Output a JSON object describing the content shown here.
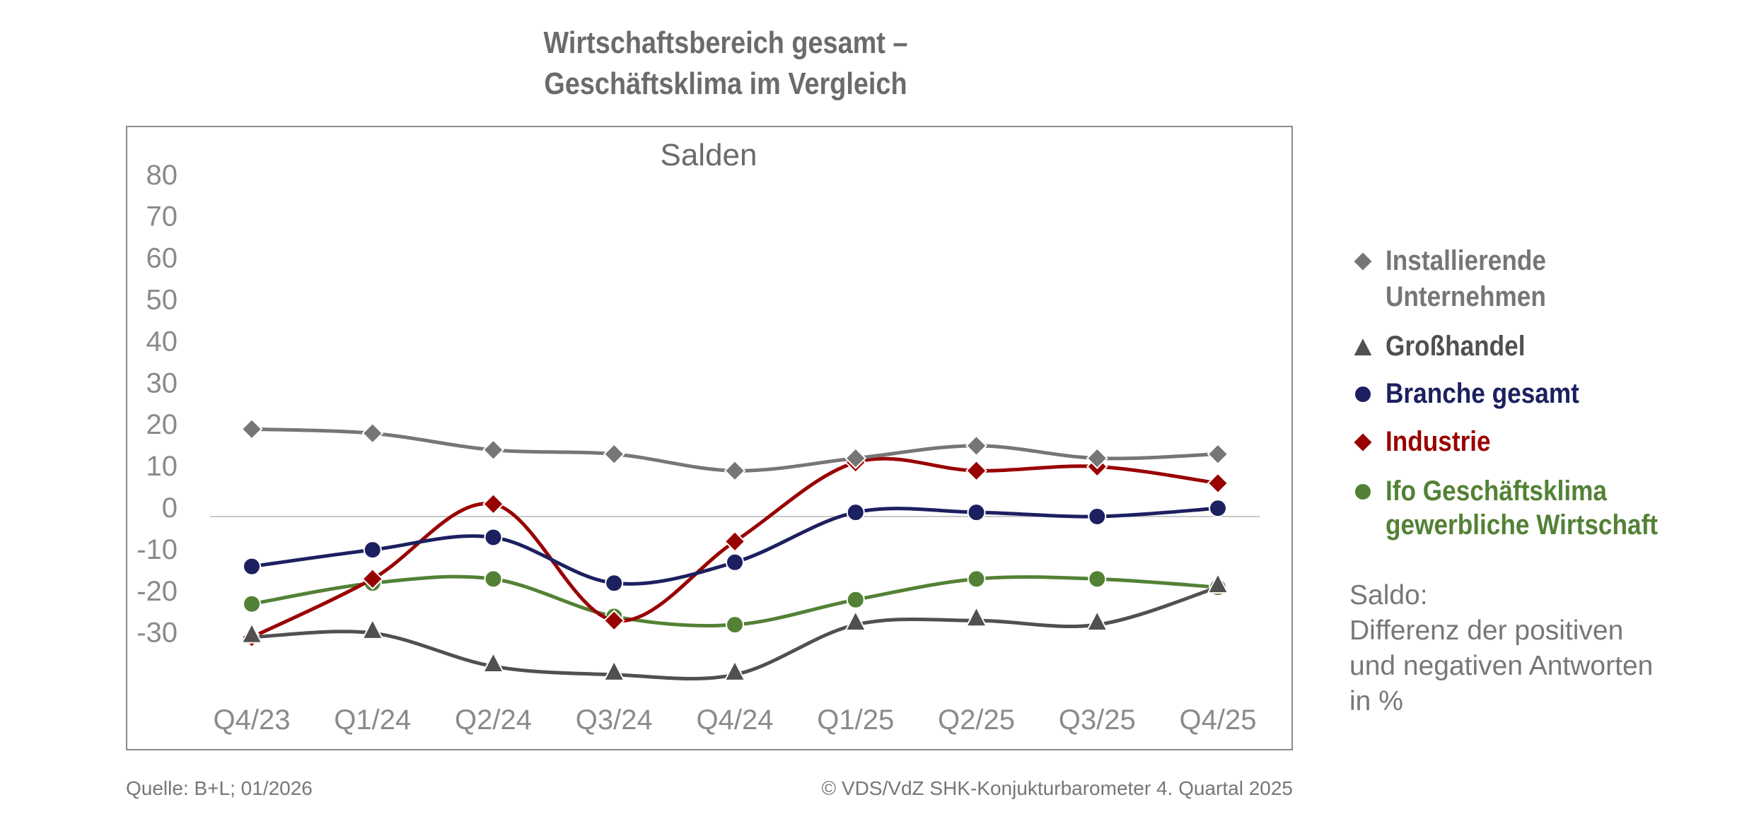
{
  "title_lines": [
    "Wirtschaftsbereich gesamt –",
    "Geschäftsklima im Vergleich"
  ],
  "chart_data": {
    "type": "line",
    "title": "Wirtschaftsbereich gesamt – Geschäftsklima im Vergleich",
    "subtitle": "Salden",
    "categories": [
      "Q4/23",
      "Q1/24",
      "Q2/24",
      "Q3/24",
      "Q4/24",
      "Q1/25",
      "Q2/25",
      "Q3/25",
      "Q4/25"
    ],
    "yticks": [
      80,
      70,
      60,
      50,
      40,
      30,
      20,
      10,
      0,
      -10,
      -20,
      -30
    ],
    "ylim": [
      -40,
      80
    ],
    "smooth": true,
    "zero_line": true,
    "grid": false,
    "legend_position": "right",
    "series": [
      {
        "name": "Installierende Unternehmen",
        "marker": "diamond",
        "color": "#767676",
        "values": [
          21,
          20,
          16,
          15,
          11,
          14,
          17,
          14,
          15
        ]
      },
      {
        "name": "Großhandel",
        "marker": "triangle",
        "color": "#505050",
        "values": [
          -29,
          -28,
          -36,
          -38,
          -38,
          -26,
          -25,
          -26,
          -17
        ]
      },
      {
        "name": "Branche gesamt",
        "marker": "circle",
        "color": "#1c2060",
        "values": [
          -12,
          -8,
          -5,
          -16,
          -11,
          1,
          1,
          0,
          2
        ]
      },
      {
        "name": "Industrie",
        "marker": "diamond",
        "color": "#990000",
        "values": [
          -29,
          -15,
          3,
          -25,
          -6,
          13,
          11,
          12,
          8
        ]
      },
      {
        "name": "Ifo Geschäftsklima gewerbliche Wirtschaft",
        "marker": "circle",
        "color": "#538135",
        "values": [
          -21,
          -16,
          -15,
          -24,
          -26,
          -20,
          -15,
          -15,
          -17
        ]
      }
    ]
  },
  "legend": [
    {
      "lines": [
        "Installierende",
        "Unternehmen"
      ],
      "color": "#767676",
      "marker": "diamond"
    },
    {
      "lines": [
        "Großhandel"
      ],
      "color": "#505050",
      "marker": "triangle"
    },
    {
      "lines": [
        "Branche gesamt"
      ],
      "color": "#1c2060",
      "marker": "circle"
    },
    {
      "lines": [
        "Industrie"
      ],
      "color": "#990000",
      "marker": "diamond"
    },
    {
      "lines": [
        "Ifo Geschäftsklima",
        "gewerbliche Wirtschaft"
      ],
      "color": "#538135",
      "marker": "circle"
    }
  ],
  "note_lines": [
    "Saldo:",
    "Differenz der positiven",
    "und negativen Antworten",
    "in %"
  ],
  "footer": {
    "source": "Quelle: B+L; 01/2026",
    "copyright": "© VDS/VdZ SHK-Konjukturbarometer 4. Quartal 2025"
  }
}
